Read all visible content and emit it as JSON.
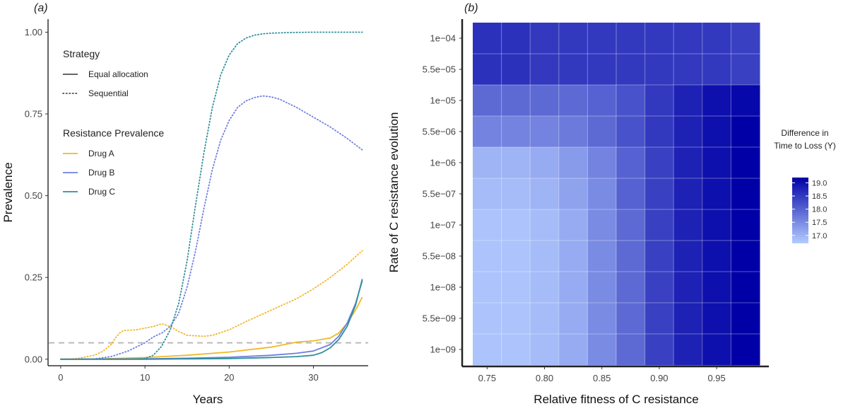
{
  "chart_data": [
    {
      "panel": "(a)",
      "type": "line",
      "xlabel": "Years",
      "ylabel": "Prevalence",
      "xlim": [
        -1.5,
        36.5
      ],
      "ylim": [
        -0.02,
        1.04
      ],
      "x_ticks": [
        0,
        10,
        20,
        30
      ],
      "y_ticks": [
        0.0,
        0.25,
        0.5,
        0.75,
        1.0
      ],
      "y_tick_labels": [
        "0.00",
        "0.25",
        "0.50",
        "0.75",
        "1.00"
      ],
      "threshold": 0.05,
      "legend": {
        "strategy_title": "Strategy",
        "strategies": [
          {
            "label": "Equal allocation",
            "dash": "solid"
          },
          {
            "label": "Sequential",
            "dash": "dotted"
          }
        ],
        "prevalence_title": "Resistance Prevalence",
        "drugs": [
          {
            "label": "Drug A",
            "color": "#f2b72a"
          },
          {
            "label": "Drug B",
            "color": "#6f7fe0"
          },
          {
            "label": "Drug C",
            "color": "#2e8f99"
          }
        ]
      },
      "series": [
        {
          "name": "Drug A - Equal allocation",
          "drug": "Drug A",
          "strategy": "Equal allocation",
          "color": "#f2b72a",
          "dash": "solid",
          "x": [
            0,
            5,
            10,
            15,
            20,
            25,
            27,
            28,
            30,
            32,
            33,
            34,
            35,
            35.8
          ],
          "y": [
            0,
            0.001,
            0.005,
            0.012,
            0.022,
            0.037,
            0.047,
            0.052,
            0.056,
            0.065,
            0.08,
            0.11,
            0.15,
            0.19
          ]
        },
        {
          "name": "Drug B - Equal allocation",
          "drug": "Drug B",
          "strategy": "Equal allocation",
          "color": "#6f7fe0",
          "dash": "solid",
          "x": [
            0,
            10,
            15,
            20,
            25,
            28,
            30,
            32,
            33,
            34,
            35,
            35.8
          ],
          "y": [
            0,
            0.001,
            0.003,
            0.006,
            0.012,
            0.018,
            0.025,
            0.045,
            0.07,
            0.11,
            0.17,
            0.24
          ]
        },
        {
          "name": "Drug C - Equal allocation",
          "drug": "Drug C",
          "strategy": "Equal allocation",
          "color": "#2e8f99",
          "dash": "solid",
          "x": [
            0,
            10,
            15,
            20,
            25,
            28,
            30,
            31,
            32,
            33,
            34,
            35,
            35.8
          ],
          "y": [
            0,
            0,
            0.001,
            0.002,
            0.005,
            0.008,
            0.012,
            0.02,
            0.035,
            0.06,
            0.1,
            0.165,
            0.245
          ]
        },
        {
          "name": "Drug A - Sequential",
          "drug": "Drug A",
          "strategy": "Sequential",
          "color": "#f2b72a",
          "dash": "dotted",
          "x": [
            0,
            2,
            4,
            5,
            6,
            6.5,
            7,
            7.5,
            9,
            11,
            12,
            13,
            14,
            15,
            17,
            18,
            20,
            22,
            25,
            28,
            30,
            32,
            34,
            35.8
          ],
          "y": [
            0,
            0.002,
            0.012,
            0.024,
            0.045,
            0.065,
            0.08,
            0.088,
            0.09,
            0.1,
            0.108,
            0.1,
            0.085,
            0.073,
            0.07,
            0.073,
            0.09,
            0.115,
            0.15,
            0.185,
            0.215,
            0.25,
            0.29,
            0.332
          ]
        },
        {
          "name": "Drug B - Sequential",
          "drug": "Drug B",
          "strategy": "Sequential",
          "color": "#6f7fe0",
          "dash": "dotted",
          "x": [
            0,
            4,
            6,
            8,
            10,
            11,
            12,
            13,
            14,
            15,
            16,
            17,
            18,
            19,
            20,
            21,
            22,
            23,
            24,
            25,
            26,
            28,
            30,
            32,
            34,
            35.8
          ],
          "y": [
            0,
            0.001,
            0.008,
            0.025,
            0.05,
            0.068,
            0.08,
            0.1,
            0.14,
            0.22,
            0.33,
            0.46,
            0.58,
            0.67,
            0.73,
            0.77,
            0.79,
            0.8,
            0.805,
            0.802,
            0.795,
            0.77,
            0.74,
            0.71,
            0.675,
            0.64
          ]
        },
        {
          "name": "Drug C - Sequential",
          "drug": "Drug C",
          "strategy": "Sequential",
          "color": "#2e8f99",
          "dash": "dotted",
          "x": [
            0,
            8,
            10,
            11,
            12,
            13,
            14,
            15,
            16,
            17,
            18,
            19,
            20,
            21,
            22,
            23,
            24,
            25,
            27,
            30,
            33,
            35.8
          ],
          "y": [
            0,
            0,
            0.002,
            0.012,
            0.04,
            0.09,
            0.17,
            0.3,
            0.47,
            0.63,
            0.77,
            0.87,
            0.93,
            0.965,
            0.982,
            0.991,
            0.995,
            0.997,
            0.999,
            1.0,
            1.0,
            1.0
          ]
        }
      ]
    },
    {
      "panel": "(b)",
      "type": "heatmap",
      "xlabel": "Relative fitness of C resistance",
      "ylabel": "Rate of C resistance evolution",
      "x_categories": [
        "0.75",
        "",
        "0.80",
        "",
        "0.85",
        "",
        "0.90",
        "",
        "0.95",
        ""
      ],
      "x_tick_labels": [
        "0.75",
        "0.80",
        "0.85",
        "0.90",
        "0.95"
      ],
      "x_values": [
        0.75,
        0.775,
        0.8,
        0.825,
        0.85,
        0.875,
        0.9,
        0.925,
        0.95,
        0.975
      ],
      "y_categories": [
        "1e−04",
        "5.5e−05",
        "1e−05",
        "5.5e−06",
        "1e−06",
        "5.5e−07",
        "1e−07",
        "5.5e−08",
        "1e−08",
        "5.5e−09",
        "1e−09"
      ],
      "values": [
        [
          18.6,
          18.6,
          18.5,
          18.5,
          18.5,
          18.5,
          18.5,
          18.5,
          18.5,
          18.4
        ],
        [
          18.6,
          18.6,
          18.5,
          18.5,
          18.5,
          18.5,
          18.5,
          18.5,
          18.5,
          18.4
        ],
        [
          17.9,
          17.9,
          17.9,
          17.9,
          18.0,
          18.2,
          18.5,
          18.8,
          19.0,
          19.1
        ],
        [
          17.6,
          17.6,
          17.6,
          17.7,
          17.9,
          18.2,
          18.5,
          18.8,
          19.0,
          19.2
        ],
        [
          17.0,
          17.0,
          17.1,
          17.3,
          17.6,
          18.0,
          18.4,
          18.8,
          19.0,
          19.2
        ],
        [
          16.9,
          16.9,
          17.0,
          17.2,
          17.5,
          18.0,
          18.4,
          18.8,
          19.0,
          19.2
        ],
        [
          16.8,
          16.8,
          16.9,
          17.1,
          17.5,
          17.9,
          18.4,
          18.8,
          19.0,
          19.2
        ],
        [
          16.8,
          16.8,
          16.9,
          17.1,
          17.5,
          17.9,
          18.4,
          18.8,
          19.0,
          19.2
        ],
        [
          16.8,
          16.8,
          16.9,
          17.1,
          17.5,
          17.9,
          18.4,
          18.8,
          19.0,
          19.2
        ],
        [
          16.8,
          16.8,
          16.9,
          17.1,
          17.5,
          17.9,
          18.4,
          18.8,
          19.0,
          19.2
        ],
        [
          16.8,
          16.8,
          16.9,
          17.1,
          17.5,
          17.9,
          18.4,
          18.8,
          19.0,
          19.2
        ]
      ],
      "colorbar": {
        "title_line1": "Difference in",
        "title_line2": "Time to Loss (Y)",
        "range": [
          16.7,
          19.2
        ],
        "ticks": [
          17.0,
          17.5,
          18.0,
          18.5,
          19.0
        ],
        "tick_labels": [
          "17.0",
          "17.5",
          "18.0",
          "18.5",
          "19.0"
        ],
        "low_color": "#b3ccff",
        "high_color": "#0000a6"
      }
    }
  ]
}
